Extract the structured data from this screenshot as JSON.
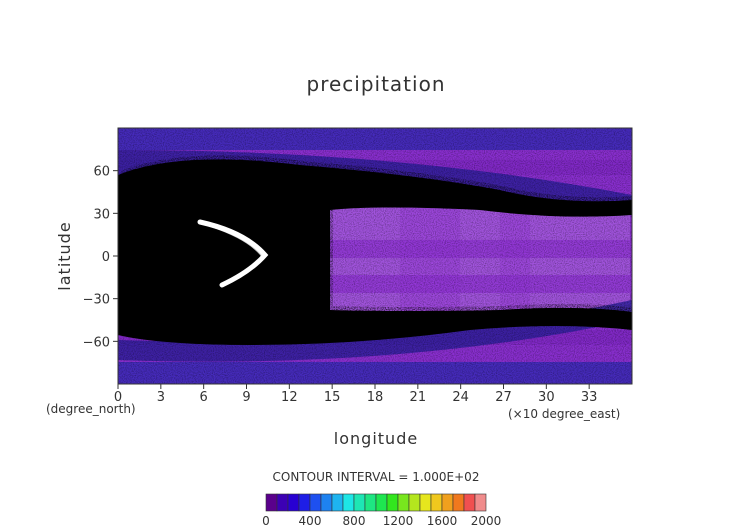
{
  "chart_data": {
    "type": "heatmap",
    "title": "precipitation",
    "xlabel": "longitude",
    "ylabel": "latitude",
    "x_unit_note": "(×10 degree_east)",
    "y_unit_note": "(degree_north)",
    "x_ticks": [
      0,
      3,
      6,
      9,
      12,
      15,
      18,
      21,
      24,
      27,
      30,
      33
    ],
    "y_ticks": [
      60,
      30,
      0,
      -30,
      -60
    ],
    "xlim": [
      0,
      36
    ],
    "ylim": [
      -90,
      90
    ],
    "contour_interval": "CONTOUR INTERVAL = 1.000E+02",
    "colorbar": {
      "ticks": [
        0,
        400,
        800,
        1200,
        1600,
        2000
      ],
      "range": [
        0,
        2000
      ],
      "colors": [
        "#5a008c",
        "#3c00b4",
        "#2800d2",
        "#1e1ee6",
        "#1e50f0",
        "#1e82f0",
        "#1eb4f0",
        "#1ee6e6",
        "#1ee6b4",
        "#1ee682",
        "#1ee650",
        "#32e61e",
        "#78e61e",
        "#b4e61e",
        "#e6e61e",
        "#f0c81e",
        "#f0a01e",
        "#f0781e",
        "#f05050",
        "#f08c8c"
      ]
    }
  }
}
